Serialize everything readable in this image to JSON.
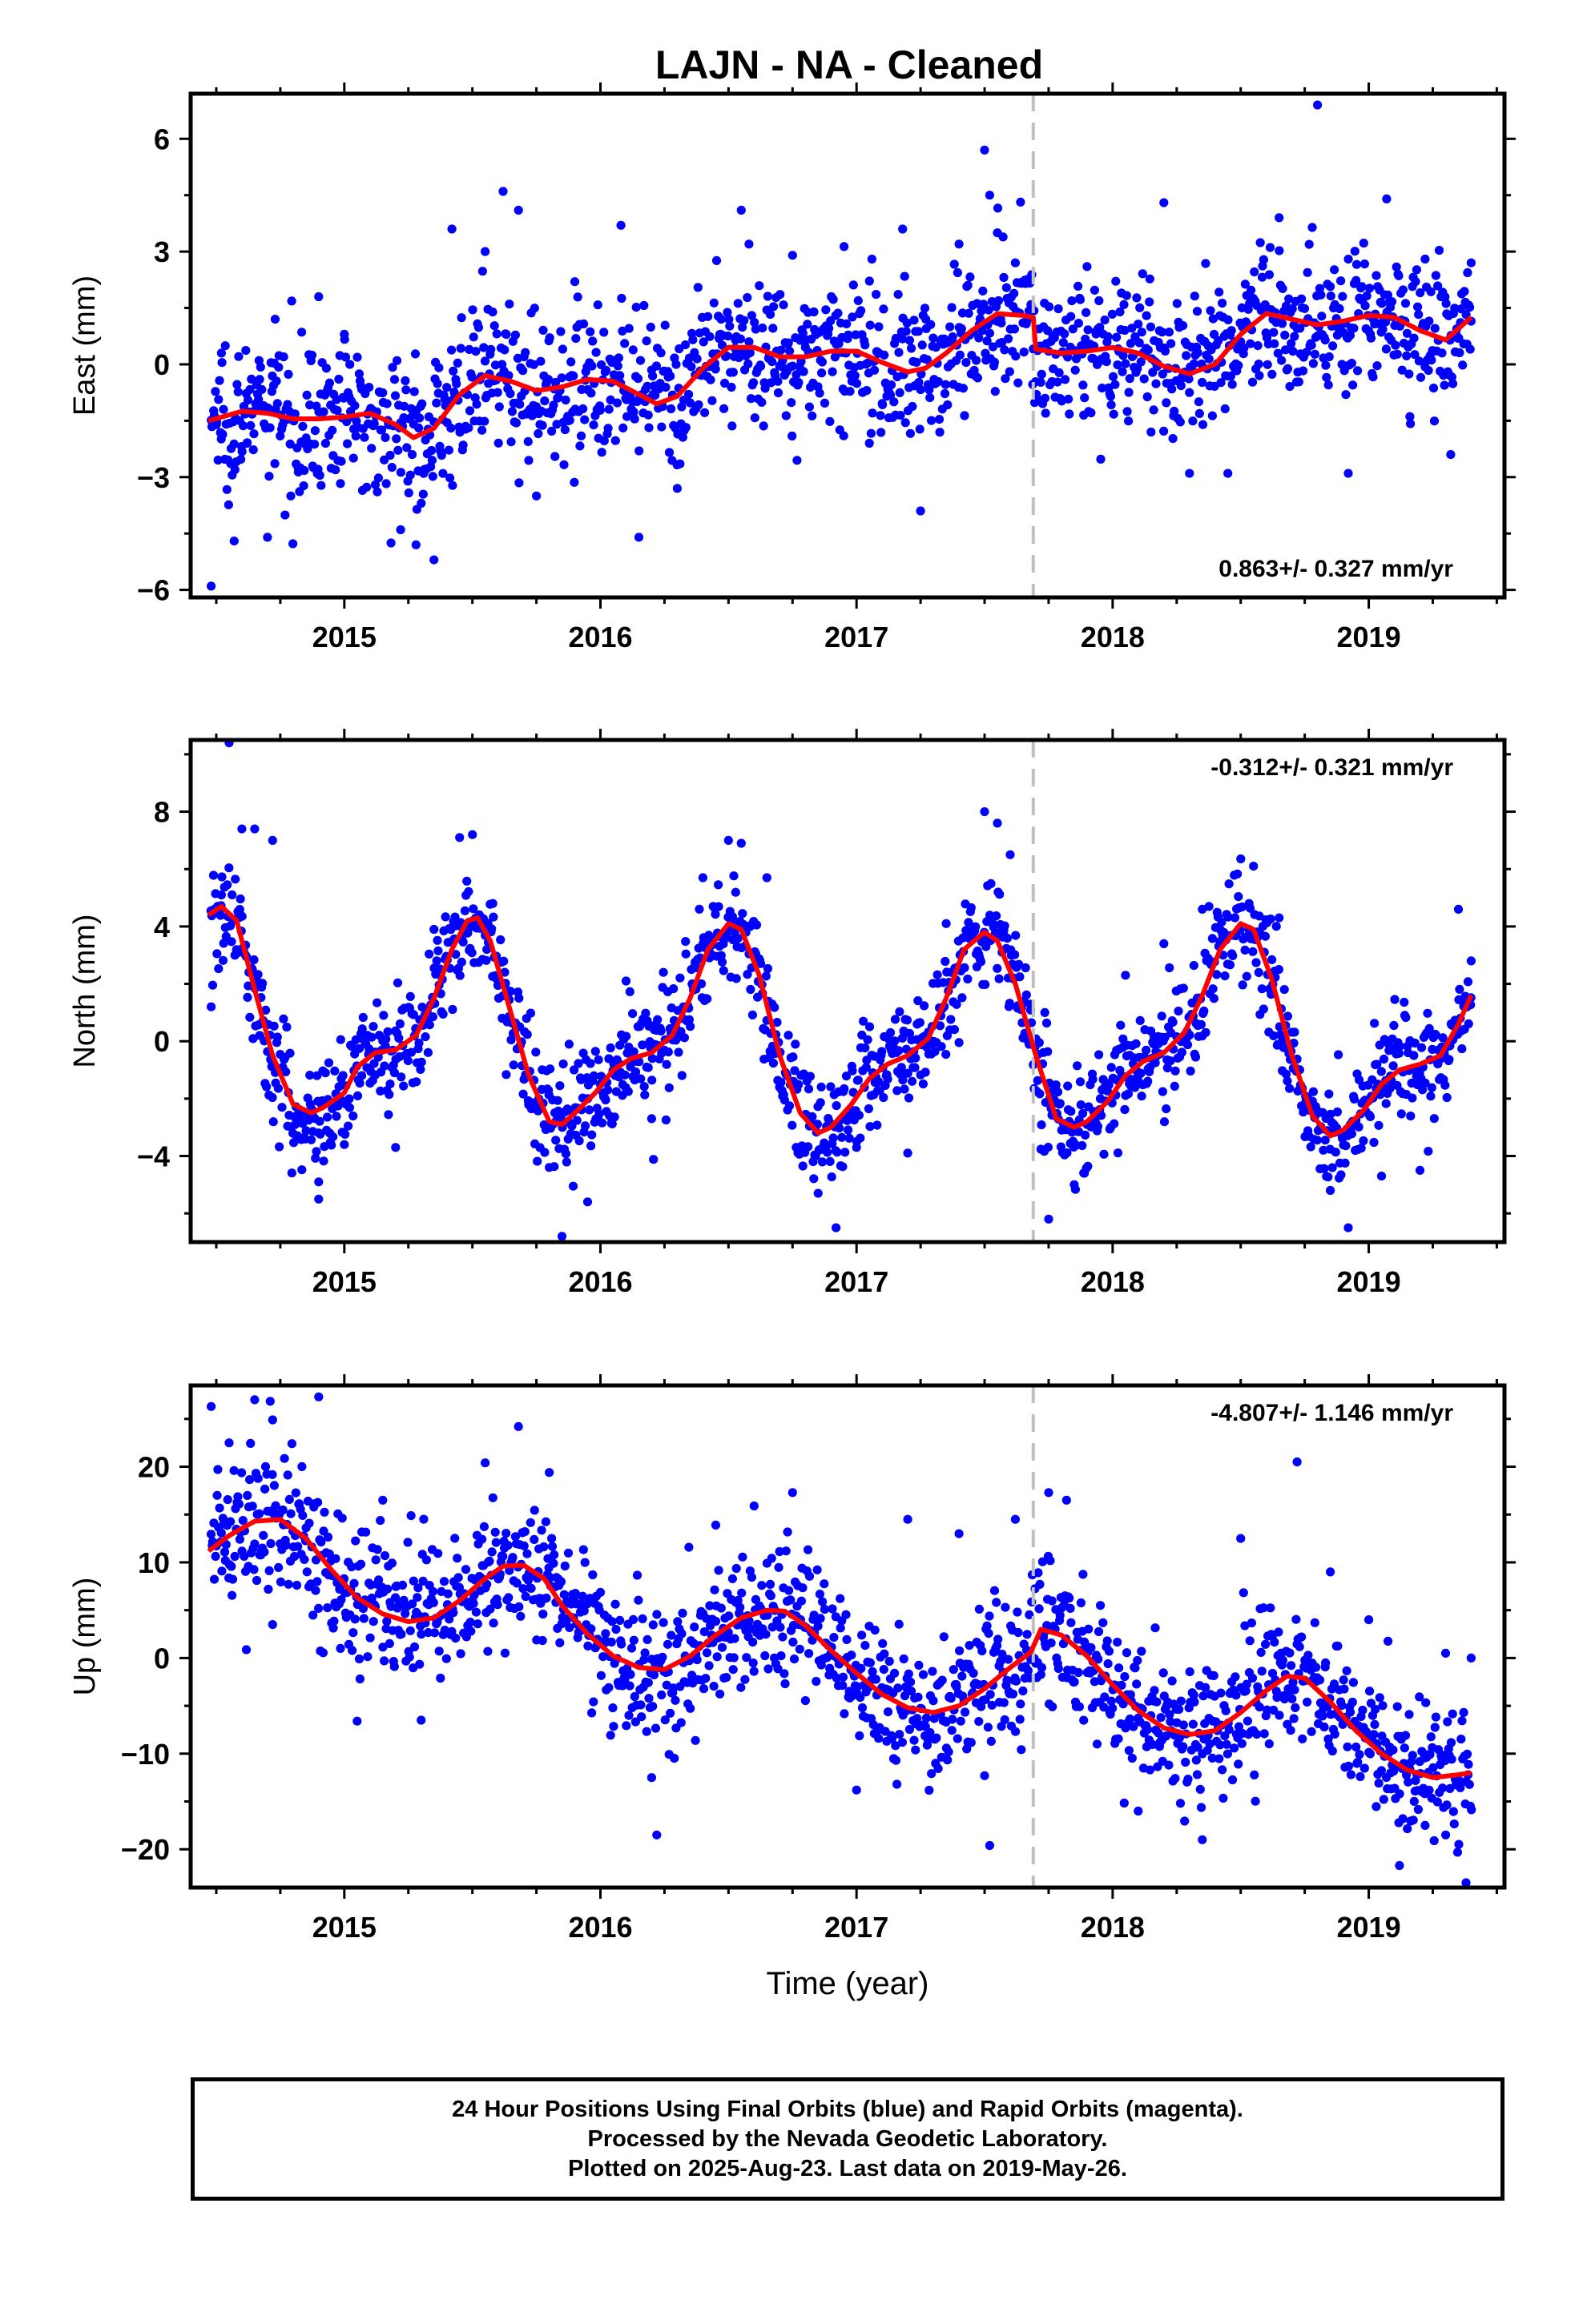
{
  "title": "LAJN  - NA - Cleaned",
  "xlabel": "Time (year)",
  "footer": {
    "line1": "24 Hour Positions Using Final Orbits (blue) and Rapid Orbits (magenta).",
    "line2": "Processed by the Nevada Geodetic Laboratory.",
    "line3": "Plotted on 2025-Aug-23. Last data on 2019-May-26."
  },
  "colors": {
    "points": "#0000ff",
    "fit": "#ff0000",
    "break_line": "#c0c0c0"
  },
  "chart_data": [
    {
      "type": "scatter",
      "name": "east",
      "ylabel": "East (mm)",
      "rate": "0.863+/- 0.327 mm/yr",
      "xlim": [
        2014.4,
        2019.53
      ],
      "ylim": [
        -6.2,
        7.2
      ],
      "yticks": [
        -6,
        -3,
        0,
        3,
        6
      ],
      "xticks": [
        2015,
        2016,
        2017,
        2018,
        2019
      ],
      "break_year": 2017.69,
      "point_count": 1500,
      "fit": {
        "x": [
          2014.47,
          2014.6,
          2014.7,
          2014.8,
          2014.9,
          2015.0,
          2015.1,
          2015.2,
          2015.27,
          2015.35,
          2015.45,
          2015.55,
          2015.65,
          2015.75,
          2015.85,
          2015.95,
          2016.05,
          2016.15,
          2016.22,
          2016.3,
          2016.4,
          2016.5,
          2016.6,
          2016.7,
          2016.8,
          2016.9,
          2017.0,
          2017.1,
          2017.2,
          2017.27,
          2017.35,
          2017.45,
          2017.55,
          2017.65,
          2017.69,
          2017.7,
          2017.8,
          2017.9,
          2018.0,
          2018.1,
          2018.2,
          2018.3,
          2018.4,
          2018.5,
          2018.6,
          2018.7,
          2018.8,
          2018.9,
          2019.0,
          2019.1,
          2019.2,
          2019.3,
          2019.4
        ],
        "y": [
          -1.5,
          -1.25,
          -1.3,
          -1.45,
          -1.45,
          -1.4,
          -1.3,
          -1.6,
          -1.95,
          -1.7,
          -0.8,
          -0.3,
          -0.45,
          -0.7,
          -0.6,
          -0.4,
          -0.45,
          -0.8,
          -1.05,
          -0.85,
          -0.1,
          0.45,
          0.45,
          0.2,
          0.2,
          0.35,
          0.35,
          0.05,
          -0.2,
          -0.1,
          0.3,
          0.9,
          1.35,
          1.3,
          1.25,
          0.4,
          0.3,
          0.35,
          0.45,
          0.3,
          -0.05,
          -0.25,
          0.0,
          0.8,
          1.35,
          1.2,
          1.05,
          1.15,
          1.3,
          1.25,
          0.9,
          0.65,
          1.25
        ]
      },
      "points": [
        [
          2014.48,
          -5.9
        ],
        [
          2014.52,
          0.3
        ],
        [
          2014.57,
          -4.7
        ],
        [
          2014.62,
          -2.1
        ],
        [
          2014.7,
          -4.6
        ],
        [
          2014.73,
          1.2
        ],
        [
          2014.9,
          1.8
        ],
        [
          2015.0,
          0.8
        ],
        [
          2015.22,
          -4.4
        ],
        [
          2015.28,
          -4.8
        ],
        [
          2015.35,
          -5.2
        ],
        [
          2015.42,
          3.6
        ],
        [
          2015.55,
          3.0
        ],
        [
          2015.62,
          4.6
        ],
        [
          2015.68,
          4.1
        ],
        [
          2015.75,
          -3.5
        ],
        [
          2015.9,
          2.2
        ],
        [
          2016.08,
          3.7
        ],
        [
          2016.15,
          -4.6
        ],
        [
          2016.3,
          -3.3
        ],
        [
          2016.55,
          4.1
        ],
        [
          2016.58,
          3.2
        ],
        [
          2016.75,
          2.9
        ],
        [
          2016.95,
          -1.9
        ],
        [
          2017.05,
          -2.1
        ],
        [
          2017.18,
          3.6
        ],
        [
          2017.25,
          -3.9
        ],
        [
          2017.4,
          3.2
        ],
        [
          2017.5,
          5.7
        ],
        [
          2017.52,
          4.5
        ],
        [
          2017.55,
          3.5
        ],
        [
          2017.62,
          2.7
        ],
        [
          2017.9,
          2.6
        ],
        [
          2018.15,
          -1.8
        ],
        [
          2018.2,
          4.3
        ],
        [
          2018.3,
          -2.9
        ],
        [
          2018.45,
          -2.9
        ],
        [
          2018.65,
          3.9
        ],
        [
          2018.8,
          6.9
        ],
        [
          2018.92,
          -2.9
        ],
        [
          2019.07,
          4.4
        ],
        [
          2019.22,
          2.8
        ],
        [
          2019.32,
          -2.4
        ],
        [
          2019.4,
          2.7
        ]
      ]
    },
    {
      "type": "scatter",
      "name": "north",
      "ylabel": "North (mm)",
      "rate": "-0.312+/- 0.321 mm/yr",
      "xlim": [
        2014.4,
        2019.53
      ],
      "ylim": [
        -7.0,
        10.5
      ],
      "yticks": [
        -4,
        0,
        4,
        8
      ],
      "xticks": [
        2015,
        2016,
        2017,
        2018,
        2019
      ],
      "break_year": 2017.69,
      "point_count": 1500,
      "fit": {
        "x": [
          2014.47,
          2014.52,
          2014.58,
          2014.65,
          2014.72,
          2014.8,
          2014.87,
          2014.92,
          2015.0,
          2015.05,
          2015.12,
          2015.2,
          2015.28,
          2015.35,
          2015.42,
          2015.48,
          2015.52,
          2015.57,
          2015.65,
          2015.72,
          2015.8,
          2015.85,
          2015.9,
          2015.98,
          2016.05,
          2016.12,
          2016.2,
          2016.28,
          2016.35,
          2016.42,
          2016.5,
          2016.55,
          2016.62,
          2016.7,
          2016.78,
          2016.85,
          2016.9,
          2016.98,
          2017.05,
          2017.12,
          2017.2,
          2017.28,
          2017.35,
          2017.42,
          2017.5,
          2017.55,
          2017.62,
          2017.7,
          2017.78,
          2017.85,
          2017.9,
          2017.98,
          2018.05,
          2018.12,
          2018.2,
          2018.28,
          2018.35,
          2018.42,
          2018.5,
          2018.55,
          2018.62,
          2018.7,
          2018.78,
          2018.85,
          2018.9,
          2018.98,
          2019.05,
          2019.12,
          2019.2,
          2019.28,
          2019.35,
          2019.4
        ],
        "y": [
          4.4,
          4.7,
          4.2,
          1.8,
          -0.5,
          -2.2,
          -2.5,
          -2.3,
          -1.8,
          -0.9,
          -0.4,
          -0.3,
          0.2,
          1.5,
          3.2,
          4.2,
          4.3,
          3.5,
          1.0,
          -1.2,
          -2.8,
          -2.9,
          -2.5,
          -1.8,
          -1.0,
          -0.6,
          -0.4,
          0.2,
          1.5,
          3.2,
          4.1,
          3.9,
          2.3,
          -0.5,
          -2.5,
          -3.2,
          -3.0,
          -2.2,
          -1.3,
          -0.8,
          -0.5,
          0.1,
          1.5,
          3.2,
          3.8,
          3.5,
          2.0,
          -0.5,
          -2.7,
          -3.0,
          -2.8,
          -2.1,
          -1.2,
          -0.7,
          -0.4,
          0.3,
          1.6,
          3.2,
          4.1,
          3.9,
          2.2,
          -0.5,
          -2.6,
          -3.3,
          -3.1,
          -2.4,
          -1.5,
          -1.0,
          -0.8,
          -0.5,
          0.6,
          1.6
        ]
      },
      "points": [
        [
          2014.48,
          1.2
        ],
        [
          2014.52,
          5.1
        ],
        [
          2014.55,
          10.4
        ],
        [
          2014.6,
          7.4
        ],
        [
          2014.65,
          7.4
        ],
        [
          2014.72,
          7.0
        ],
        [
          2014.9,
          -4.9
        ],
        [
          2014.9,
          -5.5
        ],
        [
          2015.0,
          -3.6
        ],
        [
          2015.2,
          -3.7
        ],
        [
          2015.35,
          3.9
        ],
        [
          2015.45,
          7.1
        ],
        [
          2015.5,
          7.2
        ],
        [
          2015.58,
          4.8
        ],
        [
          2015.8,
          -4.4
        ],
        [
          2015.85,
          -6.8
        ],
        [
          2015.95,
          -5.6
        ],
        [
          2016.1,
          2.1
        ],
        [
          2016.2,
          -2.7
        ],
        [
          2016.4,
          5.7
        ],
        [
          2016.5,
          7.0
        ],
        [
          2016.55,
          6.9
        ],
        [
          2016.65,
          5.7
        ],
        [
          2016.85,
          -5.3
        ],
        [
          2016.92,
          -6.5
        ],
        [
          2017.0,
          -3.7
        ],
        [
          2017.2,
          -3.9
        ],
        [
          2017.35,
          4.1
        ],
        [
          2017.5,
          8.0
        ],
        [
          2017.55,
          7.6
        ],
        [
          2017.6,
          6.5
        ],
        [
          2017.75,
          -6.2
        ],
        [
          2017.85,
          -5.0
        ],
        [
          2018.05,
          2.3
        ],
        [
          2018.2,
          3.4
        ],
        [
          2018.35,
          4.6
        ],
        [
          2018.55,
          6.1
        ],
        [
          2018.65,
          4.3
        ],
        [
          2018.85,
          -5.2
        ],
        [
          2018.92,
          -6.5
        ],
        [
          2019.05,
          -4.7
        ],
        [
          2019.2,
          -4.5
        ],
        [
          2019.35,
          4.6
        ],
        [
          2019.4,
          2.8
        ]
      ]
    },
    {
      "type": "scatter",
      "name": "up",
      "ylabel": "Up (mm)",
      "rate": "-4.807+/- 1.146 mm/yr",
      "xlim": [
        2014.4,
        2019.53
      ],
      "ylim": [
        -24.0,
        28.5
      ],
      "yticks": [
        -20,
        -10,
        0,
        10,
        20
      ],
      "xticks": [
        2015,
        2016,
        2017,
        2018,
        2019
      ],
      "break_year": 2017.69,
      "point_count": 1500,
      "fit": {
        "x": [
          2014.47,
          2014.55,
          2014.65,
          2014.75,
          2014.85,
          2014.95,
          2015.05,
          2015.15,
          2015.25,
          2015.35,
          2015.45,
          2015.55,
          2015.62,
          2015.7,
          2015.78,
          2015.85,
          2015.95,
          2016.05,
          2016.15,
          2016.25,
          2016.35,
          2016.45,
          2016.55,
          2016.65,
          2016.72,
          2016.8,
          2016.9,
          2017.0,
          2017.1,
          2017.2,
          2017.3,
          2017.4,
          2017.5,
          2017.6,
          2017.68,
          2017.69,
          2017.72,
          2017.8,
          2017.9,
          2018.0,
          2018.1,
          2018.2,
          2018.3,
          2018.4,
          2018.5,
          2018.6,
          2018.68,
          2018.75,
          2018.85,
          2018.95,
          2019.05,
          2019.15,
          2019.25,
          2019.35,
          2019.4
        ],
        "y": [
          11.2,
          12.8,
          14.3,
          14.5,
          12.5,
          9.2,
          6.3,
          4.6,
          3.8,
          4.2,
          6.0,
          8.3,
          9.6,
          9.7,
          8.3,
          5.5,
          2.5,
          0.2,
          -1.0,
          -1.2,
          0.2,
          2.4,
          4.2,
          5.0,
          4.9,
          3.4,
          0.8,
          -1.6,
          -3.8,
          -5.2,
          -5.7,
          -5.0,
          -3.2,
          -1.0,
          0.6,
          1.2,
          3.0,
          2.4,
          0.2,
          -2.8,
          -5.5,
          -7.3,
          -8.0,
          -7.6,
          -5.7,
          -3.4,
          -1.9,
          -2.1,
          -4.6,
          -7.6,
          -10.0,
          -11.7,
          -12.5,
          -12.2,
          -12.0
        ]
      },
      "points": [
        [
          2014.48,
          26.3
        ],
        [
          2014.55,
          22.5
        ],
        [
          2014.65,
          27.0
        ],
        [
          2014.72,
          24.9
        ],
        [
          2014.72,
          3.5
        ],
        [
          2014.9,
          27.3
        ],
        [
          2015.05,
          -6.6
        ],
        [
          2015.15,
          16.5
        ],
        [
          2015.3,
          -6.5
        ],
        [
          2015.55,
          20.4
        ],
        [
          2015.68,
          24.2
        ],
        [
          2015.8,
          19.4
        ],
        [
          2016.2,
          -12.5
        ],
        [
          2016.22,
          -18.5
        ],
        [
          2016.45,
          13.9
        ],
        [
          2016.6,
          15.9
        ],
        [
          2016.75,
          17.3
        ],
        [
          2017.0,
          -13.8
        ],
        [
          2017.2,
          14.5
        ],
        [
          2017.4,
          13.0
        ],
        [
          2017.5,
          -12.3
        ],
        [
          2017.52,
          -19.6
        ],
        [
          2017.62,
          14.5
        ],
        [
          2017.75,
          17.3
        ],
        [
          2017.82,
          16.5
        ],
        [
          2018.1,
          -16.0
        ],
        [
          2018.35,
          -19.0
        ],
        [
          2018.5,
          12.5
        ],
        [
          2018.72,
          20.5
        ],
        [
          2018.85,
          9.0
        ],
        [
          2019.0,
          4.0
        ],
        [
          2019.12,
          -21.7
        ],
        [
          2019.22,
          -17.5
        ],
        [
          2019.3,
          0.5
        ],
        [
          2019.38,
          -23.5
        ],
        [
          2019.4,
          0.0
        ]
      ]
    }
  ]
}
